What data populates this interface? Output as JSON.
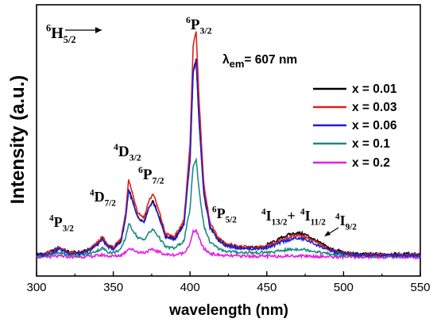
{
  "chart_data": {
    "type": "line",
    "xlabel": "wavelength (nm)",
    "ylabel": "Intensity (a.u.)",
    "xlim": [
      300,
      550
    ],
    "ylim": [
      0,
      1
    ],
    "x_ticks": [
      300,
      350,
      400,
      450,
      500,
      550
    ],
    "grid": false,
    "legend_position": "right",
    "label_lambda": "λ",
    "label_em_sub": "em",
    "label_em_value": "= 607 nm",
    "series": [
      {
        "name": "x = 0.01",
        "color": "#000000",
        "scale": 0.87,
        "bump": 1.25,
        "base": 0.043,
        "x": [
          300,
          305,
          310,
          315,
          318,
          322,
          328,
          333,
          336,
          340,
          343,
          346,
          350,
          355,
          358,
          360,
          362,
          366,
          370,
          373,
          376,
          380,
          384,
          390,
          396,
          400,
          402,
          404,
          406,
          409,
          413,
          418,
          423,
          430,
          440,
          448,
          455,
          460,
          465,
          470,
          475,
          480,
          485,
          492,
          500,
          510,
          520,
          530,
          540,
          550
        ],
        "y": [
          0.04,
          0.045,
          0.055,
          0.07,
          0.06,
          0.05,
          0.05,
          0.058,
          0.07,
          0.09,
          0.11,
          0.08,
          0.07,
          0.1,
          0.2,
          0.32,
          0.28,
          0.2,
          0.18,
          0.24,
          0.27,
          0.2,
          0.12,
          0.11,
          0.17,
          0.45,
          0.82,
          0.87,
          0.6,
          0.3,
          0.16,
          0.11,
          0.085,
          0.075,
          0.07,
          0.072,
          0.085,
          0.1,
          0.11,
          0.115,
          0.11,
          0.095,
          0.08,
          0.06,
          0.05,
          0.04,
          0.035,
          0.035,
          0.035,
          0.035
        ]
      },
      {
        "name": "x = 0.03",
        "color": "#e0201b",
        "scale": 1.0,
        "bump": 1.0,
        "base": 0.04,
        "x": [],
        "y": []
      },
      {
        "name": "x = 0.06",
        "color": "#1f1fd1",
        "scale": 0.87,
        "bump": 1.0,
        "base": 0.038,
        "x": [],
        "y": []
      },
      {
        "name": "x = 0.1",
        "color": "#1e8a83",
        "scale": 0.43,
        "bump": 0.82,
        "base": 0.035,
        "x": [],
        "y": []
      },
      {
        "name": "x = 0.2",
        "color": "#e81ae6",
        "scale": 0.12,
        "bump": 0.55,
        "base": 0.03,
        "x": [],
        "y": []
      }
    ],
    "annotations": [
      {
        "sup": "6",
        "main": "H",
        "sub": "5/2",
        "arrow": true
      },
      {
        "sup": "6",
        "main": "P",
        "sub": "3/2"
      },
      {
        "sup": "4",
        "main": "D",
        "sub": "3/2"
      },
      {
        "sup": "6",
        "main": "P",
        "sub": "7/2"
      },
      {
        "sup": "4",
        "main": "D",
        "sub": "7/2"
      },
      {
        "sup": "4",
        "main": "P",
        "sub": "3/2"
      },
      {
        "sup": "6",
        "main": "P",
        "sub": "5/2"
      },
      {
        "sup": "4",
        "main": "I",
        "sub": "13/2",
        "after": "+"
      },
      {
        "sup": "4",
        "main": "I",
        "sub": "11/2"
      },
      {
        "sup": "4",
        "main": "I",
        "sub": "9/2"
      }
    ]
  }
}
